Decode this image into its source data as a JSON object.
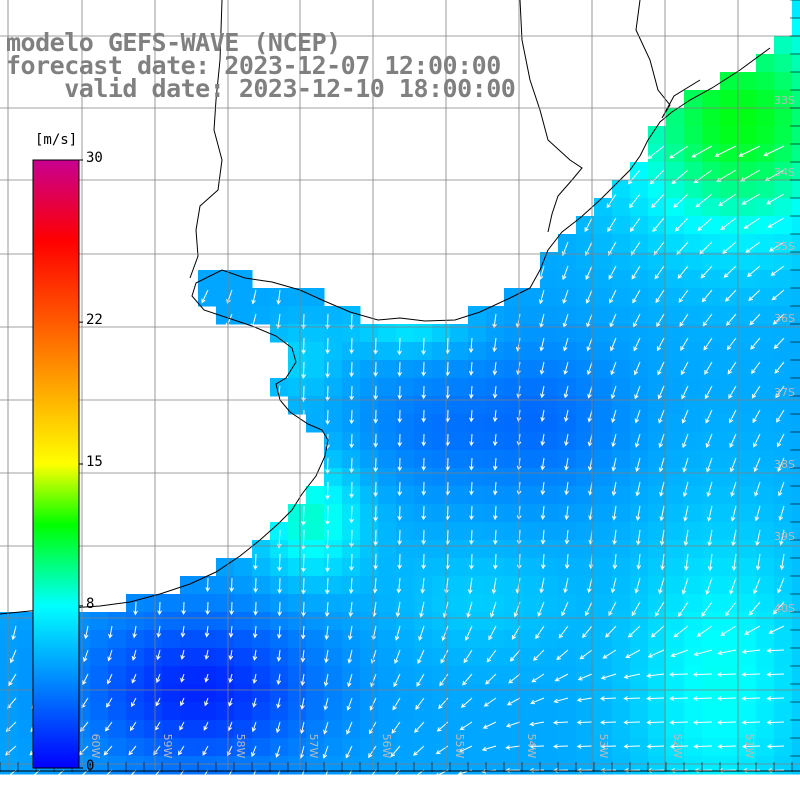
{
  "title": {
    "model": "modelo GEFS-WAVE (NCEP)",
    "forecast": "forecast date: 2023-12-07 12:00:00",
    "valid": "valid date: 2023-12-10 18:00:00"
  },
  "colorbar": {
    "unit": "[m/s]",
    "min": 0,
    "max": 30,
    "ticks": [
      {
        "value": 0,
        "label": "0"
      },
      {
        "value": 8,
        "label": "8"
      },
      {
        "value": 15,
        "label": "15"
      },
      {
        "value": 22,
        "label": "22"
      },
      {
        "value": 30,
        "label": "30"
      }
    ],
    "stops": [
      {
        "value": 0,
        "color": "#0000ff"
      },
      {
        "value": 8,
        "color": "#00ffff"
      },
      {
        "value": 15,
        "color": "#ffff00"
      },
      {
        "value": 12,
        "color": "#00ff00"
      },
      {
        "value": 22,
        "color": "#ff5500"
      },
      {
        "value": 26,
        "color": "#ff0000"
      },
      {
        "value": 30,
        "color": "#c80090"
      }
    ]
  },
  "map": {
    "lat_labels": [
      "33S",
      "34S",
      "35S",
      "36S",
      "37S",
      "38S",
      "39S",
      "40S"
    ],
    "lon_labels": [
      "60W",
      "59W",
      "58W",
      "57W",
      "56W",
      "55W",
      "54W",
      "53W",
      "52W",
      "51W"
    ],
    "colors": {
      "land": "#ffffff",
      "coast": "#000000",
      "grid": "#808080",
      "arrow": "#ffffff",
      "label": "#bbbbbb"
    }
  }
}
